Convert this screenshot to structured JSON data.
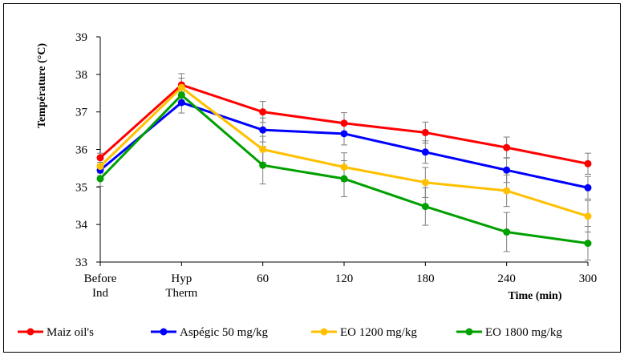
{
  "chart_data": {
    "type": "line",
    "title": "",
    "xlabel": "Time (min)",
    "ylabel": "Température (°C)",
    "ylim": [
      33,
      39
    ],
    "yticks": [
      "33",
      "34",
      "35",
      "36",
      "37",
      "38",
      "39"
    ],
    "categories": [
      "Before Ind",
      "Hyp Therm",
      "60",
      "120",
      "180",
      "240",
      "300"
    ],
    "category_lines": [
      [
        "Before",
        "Ind"
      ],
      [
        "Hyp",
        "Therm"
      ],
      [
        "60"
      ],
      [
        "120"
      ],
      [
        "180"
      ],
      [
        "240"
      ],
      [
        "300"
      ]
    ],
    "grid": false,
    "legend_position": "bottom",
    "series": [
      {
        "name": "Maiz oil's",
        "color": "#ff0000",
        "values": [
          35.78,
          37.72,
          37.0,
          36.7,
          36.45,
          36.05,
          35.62
        ],
        "errors": [
          0.12,
          0.3,
          0.28,
          0.28,
          0.28,
          0.28,
          0.28
        ]
      },
      {
        "name": "Aspégic 50 mg/kg",
        "color": "#0000ff",
        "values": [
          35.45,
          37.25,
          36.52,
          36.42,
          35.93,
          35.45,
          34.98
        ],
        "errors": [
          0.15,
          0.28,
          0.32,
          0.3,
          0.3,
          0.33,
          0.3
        ]
      },
      {
        "name": "EO 1200 mg/kg",
        "color": "#ffc000",
        "values": [
          35.55,
          37.65,
          36.0,
          35.53,
          35.12,
          34.9,
          34.22
        ],
        "errors": [
          0.18,
          0.25,
          0.35,
          0.38,
          0.4,
          0.42,
          0.42
        ]
      },
      {
        "name": "EO 1800 mg/kg",
        "color": "#00a000",
        "values": [
          35.22,
          37.45,
          35.58,
          35.22,
          34.48,
          33.8,
          33.5
        ],
        "errors": [
          0.2,
          0.25,
          0.5,
          0.48,
          0.5,
          0.52,
          0.45
        ]
      }
    ]
  }
}
